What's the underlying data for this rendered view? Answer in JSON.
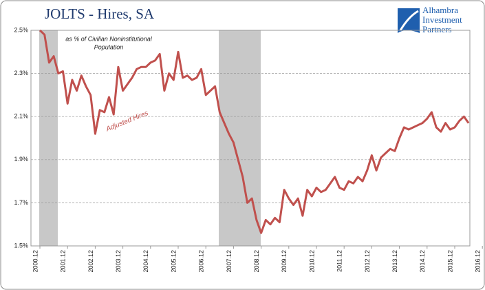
{
  "chart_data": {
    "type": "line",
    "title": "JOLTS - Hires, SA",
    "logo": [
      "Alhambra",
      "Investment",
      "Partners"
    ],
    "annotations": [
      "as % of Civilian Noninstitutional",
      "Population"
    ],
    "x": [
      "2000.12",
      "2001.02",
      "2001.04",
      "2001.06",
      "2001.08",
      "2001.10",
      "2001.12",
      "2002.02",
      "2002.04",
      "2002.06",
      "2002.08",
      "2002.10",
      "2002.12",
      "2003.02",
      "2003.04",
      "2003.06",
      "2003.08",
      "2003.10",
      "2003.12",
      "2004.02",
      "2004.04",
      "2004.06",
      "2004.08",
      "2004.10",
      "2004.12",
      "2005.02",
      "2005.04",
      "2005.06",
      "2005.08",
      "2005.10",
      "2005.12",
      "2006.02",
      "2006.04",
      "2006.06",
      "2006.08",
      "2006.10",
      "2006.12",
      "2007.02",
      "2007.04",
      "2007.06",
      "2007.08",
      "2007.10",
      "2007.12",
      "2008.02",
      "2008.04",
      "2008.06",
      "2008.08",
      "2008.10",
      "2008.12",
      "2009.02",
      "2009.04",
      "2009.06",
      "2009.08",
      "2009.10",
      "2009.12",
      "2010.02",
      "2010.04",
      "2010.06",
      "2010.08",
      "2010.10",
      "2010.12",
      "2011.02",
      "2011.04",
      "2011.06",
      "2011.08",
      "2011.10",
      "2011.12",
      "2012.02",
      "2012.04",
      "2012.06",
      "2012.08",
      "2012.10",
      "2012.12",
      "2013.02",
      "2013.04",
      "2013.06",
      "2013.08",
      "2013.10",
      "2013.12",
      "2014.02",
      "2014.04",
      "2014.06",
      "2014.08",
      "2014.10",
      "2014.12",
      "2015.02",
      "2015.04",
      "2015.06",
      "2015.08",
      "2015.10",
      "2015.12",
      "2016.02",
      "2016.04",
      "2016.06"
    ],
    "series": [
      {
        "name": "Adjusted Hires",
        "color": "#c0504d",
        "values": [
          2.5,
          2.48,
          2.35,
          2.38,
          2.3,
          2.31,
          2.16,
          2.27,
          2.22,
          2.29,
          2.24,
          2.2,
          2.02,
          2.13,
          2.12,
          2.19,
          2.11,
          2.33,
          2.22,
          2.25,
          2.28,
          2.32,
          2.33,
          2.33,
          2.35,
          2.36,
          2.39,
          2.22,
          2.3,
          2.27,
          2.4,
          2.28,
          2.29,
          2.27,
          2.28,
          2.32,
          2.2,
          2.22,
          2.24,
          2.12,
          2.07,
          2.02,
          1.98,
          1.9,
          1.82,
          1.7,
          1.72,
          1.62,
          1.56,
          1.62,
          1.6,
          1.63,
          1.61,
          1.76,
          1.72,
          1.69,
          1.72,
          1.64,
          1.76,
          1.73,
          1.77,
          1.75,
          1.76,
          1.79,
          1.82,
          1.77,
          1.76,
          1.8,
          1.79,
          1.82,
          1.8,
          1.85,
          1.92,
          1.85,
          1.91,
          1.93,
          1.95,
          1.94,
          2.0,
          2.05,
          2.04,
          2.05,
          2.06,
          2.07,
          2.09,
          2.12,
          2.05,
          2.03,
          2.07,
          2.04,
          2.05,
          2.08,
          2.1,
          2.07
        ]
      }
    ],
    "xticks": [
      "2000.12",
      "2001.12",
      "2002.12",
      "2003.12",
      "2004.12",
      "2005.12",
      "2006.12",
      "2007.12",
      "2008.12",
      "2009.12",
      "2010.12",
      "2011.12",
      "2012.12",
      "2013.12",
      "2014.12",
      "2015.12",
      "2016.12"
    ],
    "ylim": [
      1.5,
      2.5
    ],
    "yticks": [
      {
        "value": 1.5,
        "label": "1.5%"
      },
      {
        "value": 1.7,
        "label": "1.7%"
      },
      {
        "value": 1.9,
        "label": "1.9%"
      },
      {
        "value": 2.1,
        "label": "2.1%"
      },
      {
        "value": 2.3,
        "label": "2.3%"
      },
      {
        "value": 2.5,
        "label": "2.5%"
      }
    ],
    "grid": true
  }
}
